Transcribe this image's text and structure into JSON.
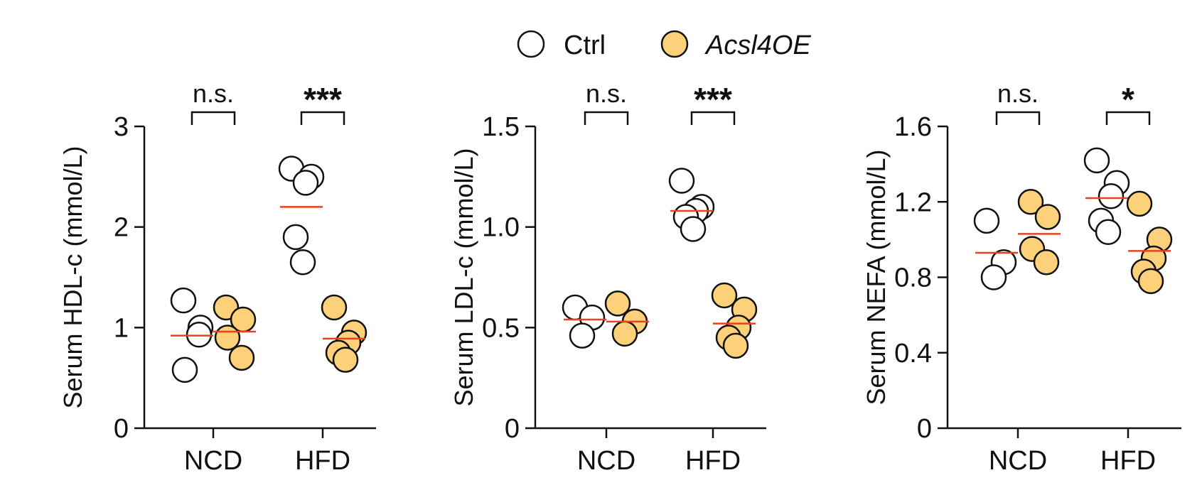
{
  "legend": {
    "entries": [
      {
        "label": "Ctrl",
        "fill": "#ffffff",
        "italic": false
      },
      {
        "label": "Acsl4OE",
        "fill": "#fcd17a",
        "italic": true
      }
    ]
  },
  "colors": {
    "ctrl_fill": "#ffffff",
    "oe_fill": "#fcd17a",
    "mean_line": "#e8421f",
    "axis": "#111111"
  },
  "chart_data": [
    {
      "type": "scatter",
      "ylabel": "Serum HDL-c (mmol/L)",
      "ylim": [
        0,
        3
      ],
      "yticks": [
        0,
        1,
        2,
        3
      ],
      "ytick_labels": [
        "0",
        "1",
        "2",
        "3"
      ],
      "categories": [
        "NCD",
        "HFD"
      ],
      "significance": [
        "n.s.",
        "***"
      ],
      "series": [
        {
          "name": "Ctrl",
          "groups": [
            [
              1.27,
              1.0,
              0.58,
              0.93
            ],
            [
              2.58,
              2.5,
              2.44,
              1.9,
              1.65
            ]
          ],
          "means": [
            0.92,
            2.2
          ]
        },
        {
          "name": "Acsl4OE",
          "groups": [
            [
              1.2,
              1.08,
              0.9,
              0.7
            ],
            [
              1.2,
              0.95,
              0.85,
              0.75,
              0.68
            ]
          ],
          "means": [
            0.96,
            0.89
          ]
        }
      ],
      "grid": false
    },
    {
      "type": "scatter",
      "ylabel": "Serum LDL-c (mmol/L)",
      "ylim": [
        0,
        1.5
      ],
      "yticks": [
        0,
        0.5,
        1.0,
        1.5
      ],
      "ytick_labels": [
        "0",
        "0.5",
        "1.0",
        "1.5"
      ],
      "categories": [
        "NCD",
        "HFD"
      ],
      "significance": [
        "n.s.",
        "***"
      ],
      "series": [
        {
          "name": "Ctrl",
          "groups": [
            [
              0.6,
              0.55,
              0.46
            ],
            [
              1.23,
              1.1,
              1.08,
              1.05,
              0.99
            ]
          ],
          "means": [
            0.54,
            1.08
          ]
        },
        {
          "name": "Acsl4OE",
          "groups": [
            [
              0.62,
              0.53,
              0.47
            ],
            [
              0.66,
              0.59,
              0.5,
              0.45,
              0.41
            ]
          ],
          "means": [
            0.53,
            0.52
          ]
        }
      ],
      "grid": false
    },
    {
      "type": "scatter",
      "ylabel": "Serum NEFA (mmol/L)",
      "ylim": [
        0,
        1.6
      ],
      "yticks": [
        0,
        0.4,
        0.8,
        1.2,
        1.6
      ],
      "ytick_labels": [
        "0",
        "0.4",
        "0.8",
        "1.2",
        "1.6"
      ],
      "categories": [
        "NCD",
        "HFD"
      ],
      "significance": [
        "n.s.",
        "*"
      ],
      "series": [
        {
          "name": "Ctrl",
          "groups": [
            [
              1.1,
              0.88,
              0.8
            ],
            [
              1.42,
              1.3,
              1.23,
              1.1,
              1.04
            ]
          ],
          "means": [
            0.93,
            1.22
          ]
        },
        {
          "name": "Acsl4OE",
          "groups": [
            [
              1.2,
              1.12,
              0.95,
              0.88
            ],
            [
              1.19,
              1.0,
              0.9,
              0.83,
              0.78
            ]
          ],
          "means": [
            1.03,
            0.94
          ]
        }
      ],
      "grid": false
    }
  ]
}
